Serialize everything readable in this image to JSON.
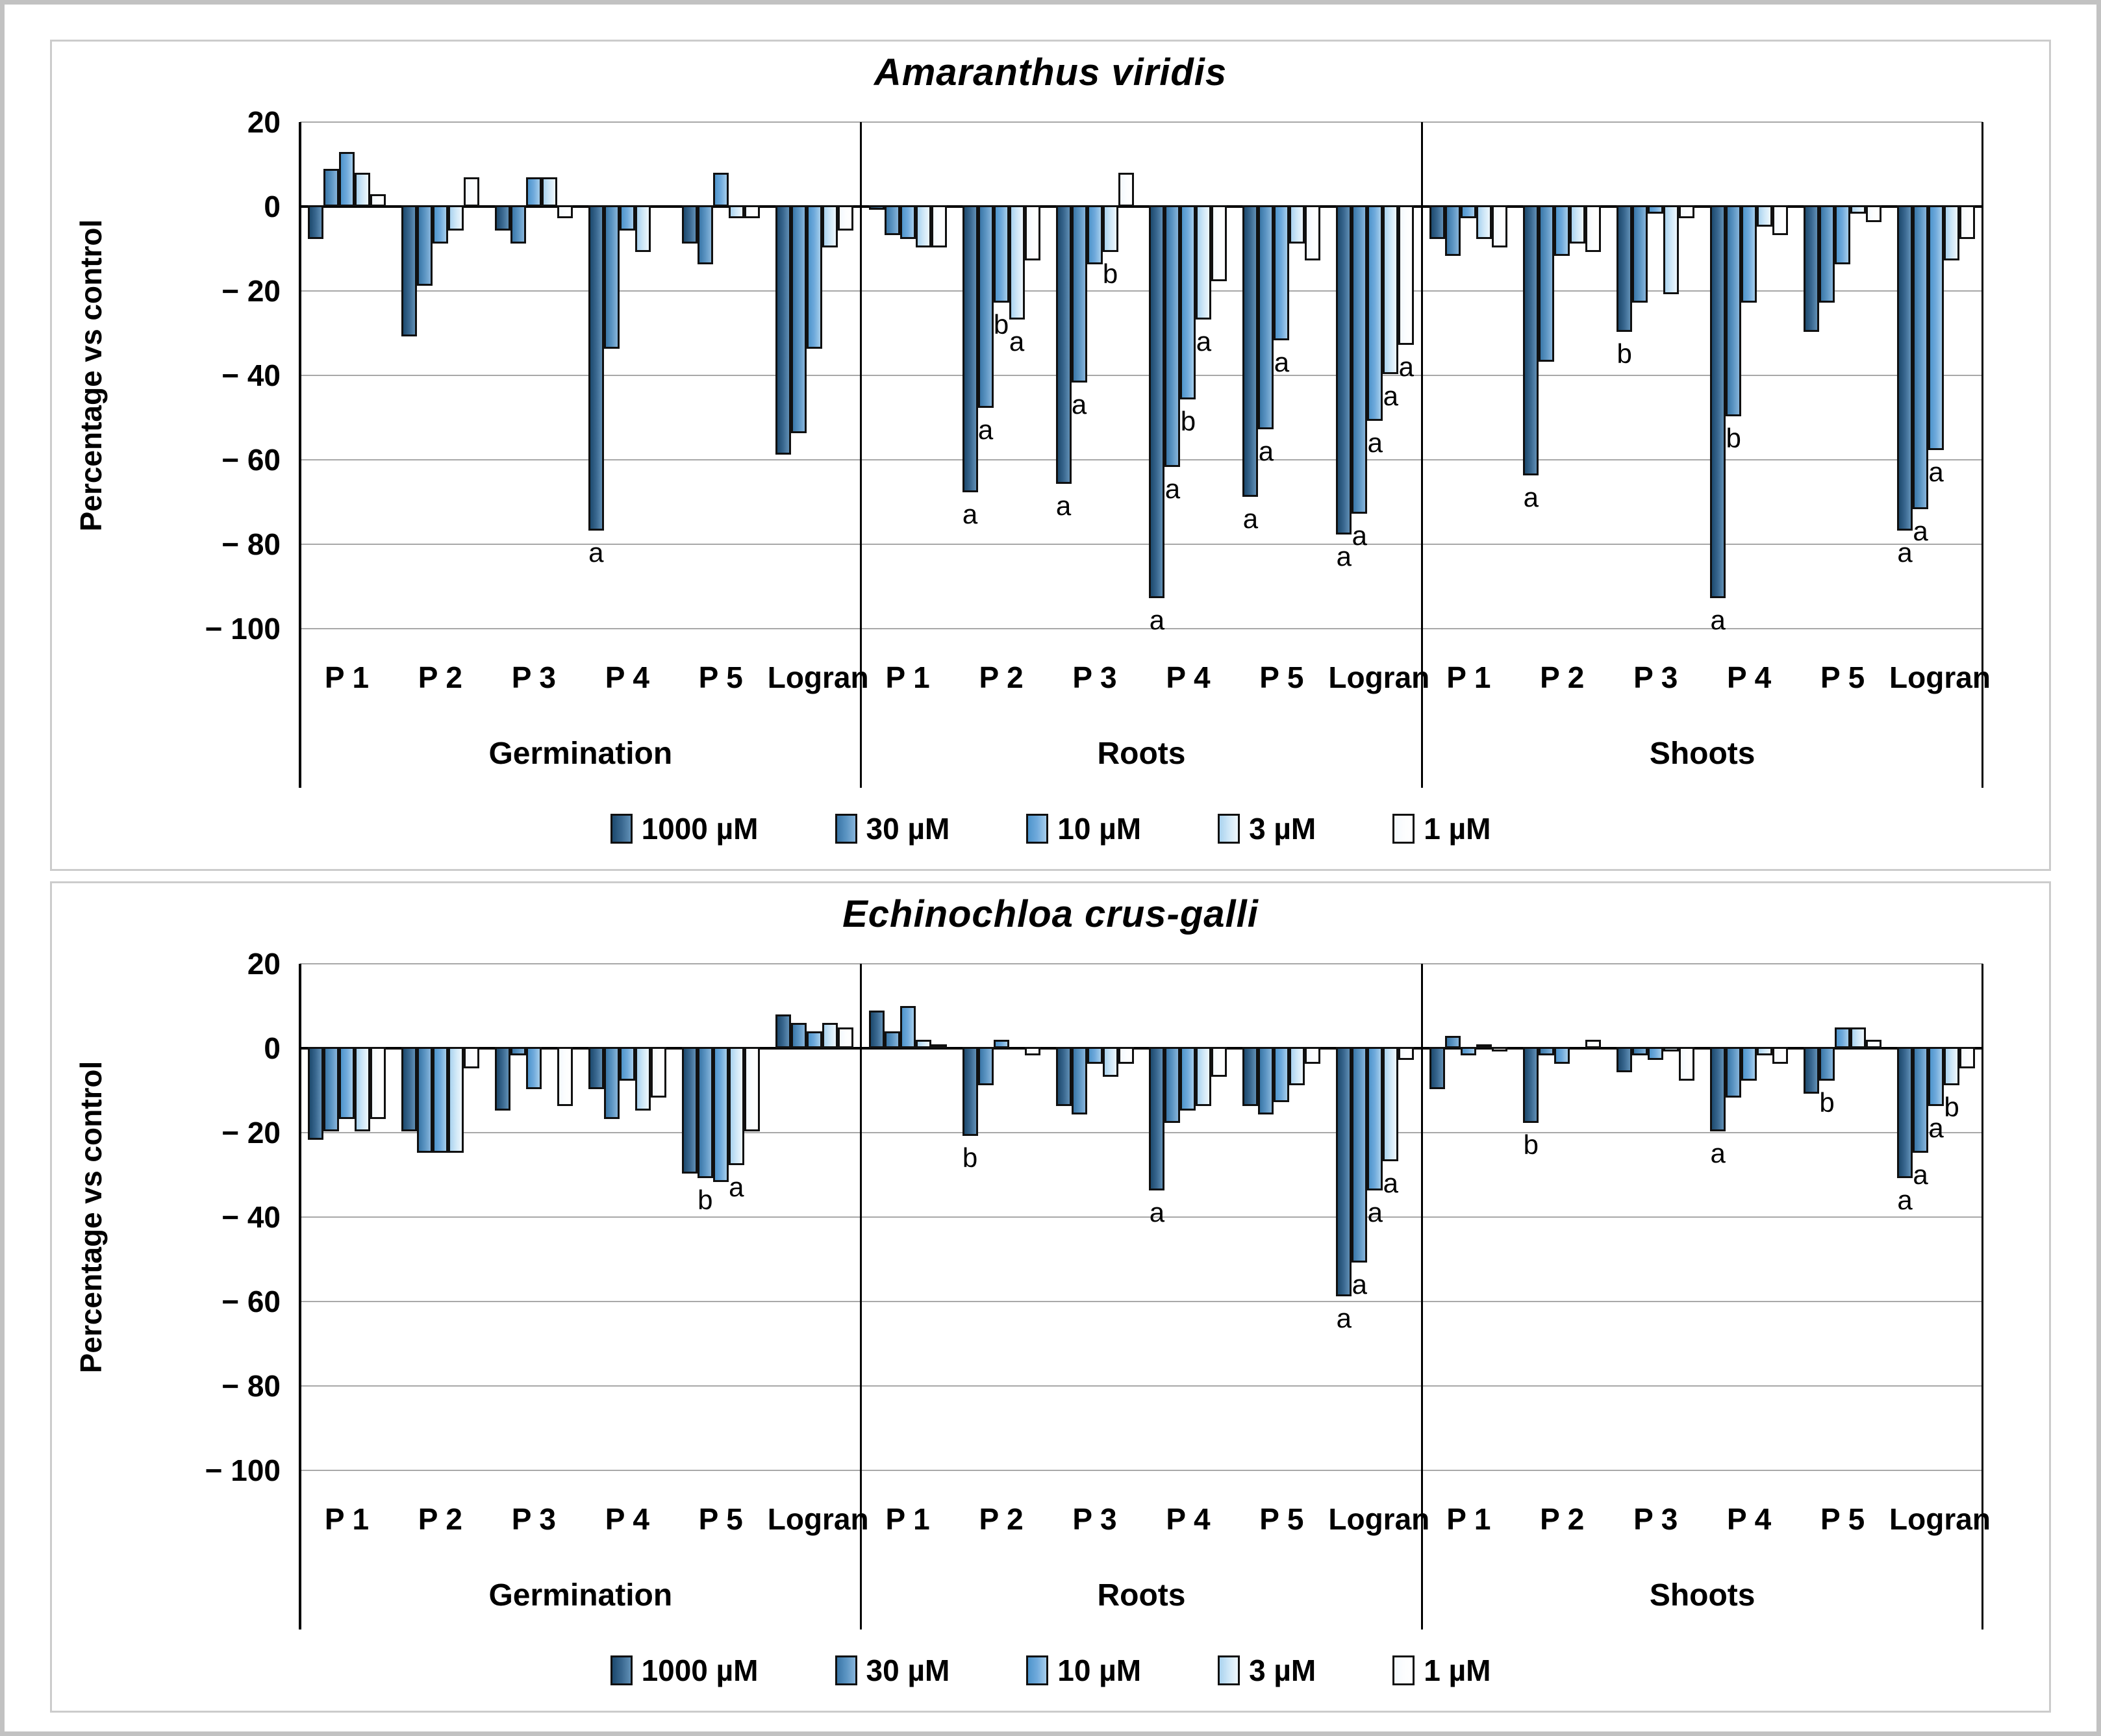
{
  "figure": {
    "kind": "two-panel grouped bar figure",
    "panel_titles": [
      "Amaranthus viridis",
      "Echinochloa crus-galli"
    ]
  },
  "colors": {
    "c1000": {
      "solid": "#33678f",
      "grad": [
        "#1d4a6e",
        "#39678f",
        "#608fb5"
      ]
    },
    "c30": {
      "solid": "#5b94c2",
      "grad": [
        "#3a77a8",
        "#5b94c2",
        "#86b4da"
      ]
    },
    "c10": {
      "solid": "#70aadc",
      "grad": [
        "#4e95cc",
        "#70aadc",
        "#a5cdeb"
      ]
    },
    "c3": {
      "solid": "#cfe7f7",
      "grad": [
        "#aad3ef",
        "#cfe7f7",
        "#eef7fd"
      ]
    },
    "c1": {
      "solid": "#ffffff",
      "grad": [
        "#f3f9fd",
        "#fcfdfe",
        "#ffffff"
      ]
    },
    "gridline": "#a8a8a8",
    "axis": "#000000",
    "panel_border": "#cccccc",
    "figure_border": "#c2c2c2"
  },
  "legend": {
    "items": [
      {
        "label": "1000 µM",
        "color_key": "c1000"
      },
      {
        "label": "30 µM",
        "color_key": "c30"
      },
      {
        "label": "10 µM",
        "color_key": "c10"
      },
      {
        "label": "3 µM",
        "color_key": "c3"
      },
      {
        "label": "1 µM",
        "color_key": "c1"
      }
    ]
  },
  "chart_data": [
    {
      "type": "bar",
      "title": "Amaranthus viridis",
      "xlabel": "",
      "ylabel": "Percentage vs control",
      "ylim": [
        -100,
        20
      ],
      "grid": true,
      "legend_position": "bottom",
      "ytick_values": [
        20,
        0,
        -20,
        -40,
        -60,
        -80,
        -100
      ],
      "ytick_labels": [
        "20",
        "0",
        "− 20",
        "− 40",
        "− 60",
        "− 80",
        "− 100"
      ],
      "series_names": [
        "1000 µM",
        "30 µM",
        "10 µM",
        "3 µM",
        "1 µM"
      ],
      "sections": [
        {
          "label": "Germination",
          "groups": [
            {
              "label": "P 1",
              "values": [
                -8,
                9,
                13,
                8,
                3
              ],
              "letters": {}
            },
            {
              "label": "P 2",
              "values": [
                -31,
                -19,
                -9,
                -6,
                7
              ],
              "letters": {}
            },
            {
              "label": "P 3",
              "values": [
                -6,
                -9,
                7,
                7,
                -3
              ],
              "letters": {}
            },
            {
              "label": "P 4",
              "values": [
                -77,
                -34,
                -6,
                -11,
                0
              ],
              "letters": {
                "0": "a"
              }
            },
            {
              "label": "P 5",
              "values": [
                -9,
                -14,
                8,
                -3,
                -3
              ],
              "letters": {}
            },
            {
              "label": "Logran",
              "values": [
                -59,
                -54,
                -34,
                -10,
                -6
              ],
              "letters": {}
            }
          ]
        },
        {
          "label": "Roots",
          "groups": [
            {
              "label": "P 1",
              "values": [
                -1,
                -7,
                -8,
                -10,
                -10
              ],
              "letters": {}
            },
            {
              "label": "P 2",
              "values": [
                -68,
                -48,
                -23,
                -27,
                -13
              ],
              "letters": {
                "0": "a",
                "1": "a",
                "2": "b",
                "3": "a"
              }
            },
            {
              "label": "P 3",
              "values": [
                -66,
                -42,
                -14,
                -11,
                8
              ],
              "letters": {
                "0": "a",
                "1": "a",
                "3": "b"
              }
            },
            {
              "label": "P 4",
              "values": [
                -93,
                -62,
                -46,
                -27,
                -18
              ],
              "letters": {
                "0": "a",
                "1": "a",
                "2": "b",
                "3": "a"
              }
            },
            {
              "label": "P 5",
              "values": [
                -69,
                -53,
                -32,
                -9,
                -13
              ],
              "letters": {
                "0": "a",
                "1": "a",
                "2": "a"
              }
            },
            {
              "label": "Logran",
              "values": [
                -78,
                -73,
                -51,
                -40,
                -33
              ],
              "letters": {
                "0": "a",
                "1": "a",
                "2": "a",
                "3": "a",
                "4": "a"
              }
            }
          ]
        },
        {
          "label": "Shoots",
          "groups": [
            {
              "label": "P 1",
              "values": [
                -8,
                -12,
                -3,
                -8,
                -10
              ],
              "letters": {}
            },
            {
              "label": "P 2",
              "values": [
                -64,
                -37,
                -12,
                -9,
                -11
              ],
              "letters": {
                "0": "a"
              }
            },
            {
              "label": "P 3",
              "values": [
                -30,
                -23,
                -2,
                -21,
                -3
              ],
              "letters": {
                "0": "b"
              }
            },
            {
              "label": "P 4",
              "values": [
                -93,
                -50,
                -23,
                -5,
                -7
              ],
              "letters": {
                "0": "a",
                "1": "b"
              }
            },
            {
              "label": "P 5",
              "values": [
                -30,
                -23,
                -14,
                -2,
                -4
              ],
              "letters": {}
            },
            {
              "label": "Logran",
              "values": [
                -77,
                -72,
                -58,
                -13,
                -8
              ],
              "letters": {
                "0": "a",
                "1": "a",
                "2": "a"
              }
            }
          ]
        }
      ]
    },
    {
      "type": "bar",
      "title": "Echinochloa crus-galli",
      "xlabel": "",
      "ylabel": "Percentage vs control",
      "ylim": [
        -100,
        20
      ],
      "grid": true,
      "legend_position": "bottom",
      "ytick_values": [
        20,
        0,
        -20,
        -40,
        -60,
        -80,
        -100
      ],
      "ytick_labels": [
        "20",
        "0",
        "− 20",
        "− 40",
        "− 60",
        "− 80",
        "− 100"
      ],
      "series_names": [
        "1000 µM",
        "30 µM",
        "10 µM",
        "3 µM",
        "1 µM"
      ],
      "sections": [
        {
          "label": "Germination",
          "groups": [
            {
              "label": "P 1",
              "values": [
                -22,
                -20,
                -17,
                -20,
                -17
              ],
              "letters": {}
            },
            {
              "label": "P 2",
              "values": [
                -20,
                -25,
                -25,
                -25,
                -5
              ],
              "letters": {}
            },
            {
              "label": "P 3",
              "values": [
                -15,
                -2,
                -10,
                0,
                -14
              ],
              "letters": {}
            },
            {
              "label": "P 4",
              "values": [
                -10,
                -17,
                -8,
                -15,
                -12
              ],
              "letters": {}
            },
            {
              "label": "P 5",
              "values": [
                -30,
                -31,
                -32,
                -28,
                -20
              ],
              "letters": {
                "1": "b",
                "3": "a"
              }
            },
            {
              "label": "Logran",
              "values": [
                8,
                6,
                4,
                6,
                5
              ],
              "letters": {}
            }
          ]
        },
        {
          "label": "Roots",
          "groups": [
            {
              "label": "P 1",
              "values": [
                9,
                4,
                10,
                2,
                1
              ],
              "letters": {}
            },
            {
              "label": "P 2",
              "values": [
                -21,
                -9,
                2,
                0,
                -2
              ],
              "letters": {
                "0": "b"
              }
            },
            {
              "label": "P 3",
              "values": [
                -14,
                -16,
                -4,
                -7,
                -4
              ],
              "letters": {}
            },
            {
              "label": "P 4",
              "values": [
                -34,
                -18,
                -15,
                -14,
                -7
              ],
              "letters": {
                "0": "a"
              }
            },
            {
              "label": "P 5",
              "values": [
                -14,
                -16,
                -13,
                -9,
                -4
              ],
              "letters": {}
            },
            {
              "label": "Logran",
              "values": [
                -59,
                -51,
                -34,
                -27,
                -3
              ],
              "letters": {
                "0": "a",
                "1": "a",
                "2": "a",
                "3": "a"
              }
            }
          ]
        },
        {
          "label": "Shoots",
          "groups": [
            {
              "label": "P 1",
              "values": [
                -10,
                3,
                -2,
                1,
                -1
              ],
              "letters": {}
            },
            {
              "label": "P 2",
              "values": [
                -18,
                -2,
                -4,
                0,
                2
              ],
              "letters": {
                "0": "b"
              }
            },
            {
              "label": "P 3",
              "values": [
                -6,
                -2,
                -3,
                -1,
                -8
              ],
              "letters": {}
            },
            {
              "label": "P 4",
              "values": [
                -20,
                -12,
                -8,
                -2,
                -4
              ],
              "letters": {
                "0": "a"
              }
            },
            {
              "label": "P 5",
              "values": [
                -11,
                -8,
                5,
                5,
                2
              ],
              "letters": {
                "1": "b"
              }
            },
            {
              "label": "Logran",
              "values": [
                -31,
                -25,
                -14,
                -9,
                -5
              ],
              "letters": {
                "0": "a",
                "1": "a",
                "2": "a",
                "3": "b"
              }
            }
          ]
        }
      ]
    }
  ]
}
